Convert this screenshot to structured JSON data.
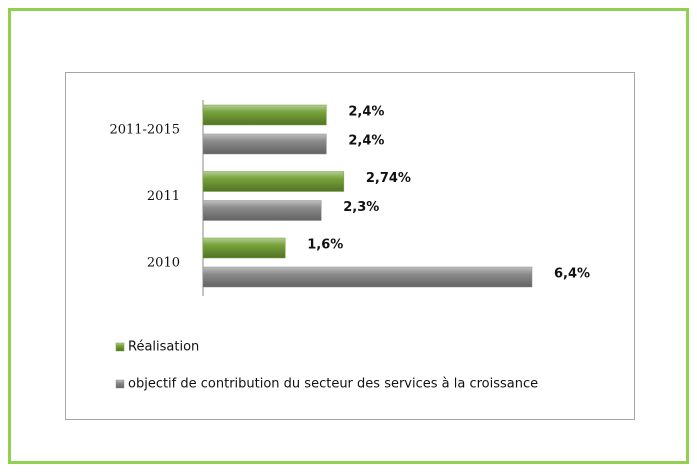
{
  "chart_data": {
    "type": "bar",
    "orientation": "horizontal",
    "categories": [
      "2011-2015",
      "2011",
      "2010"
    ],
    "series": [
      {
        "name": "Réalisation",
        "color": "#77a33a",
        "values": [
          2.4,
          2.74,
          1.6
        ],
        "value_labels": [
          "2,4%",
          "2,74%",
          "1,6%"
        ]
      },
      {
        "name": "objectif de contribution du secteur des services à la croissance",
        "color": "#8c8c8c",
        "values": [
          2.4,
          2.3,
          6.4
        ],
        "value_labels": [
          "2,4%",
          "2,3%",
          "6,4%"
        ]
      }
    ],
    "legend": "bottom-left"
  }
}
